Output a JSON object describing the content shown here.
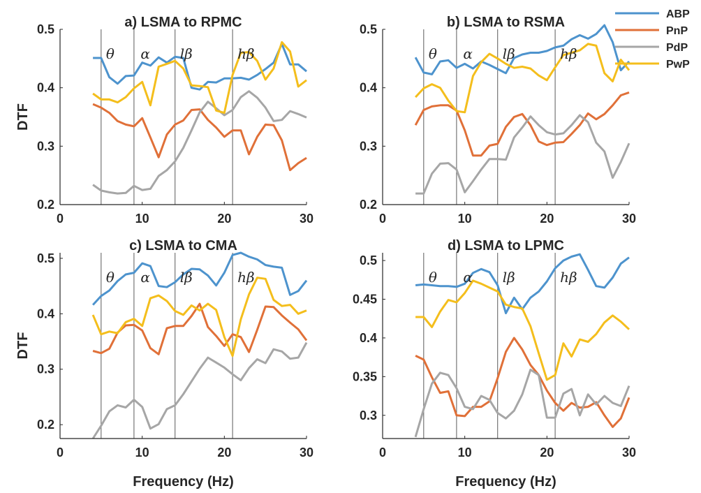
{
  "chart_data": [
    {
      "type": "line",
      "title": "a) LSMA to RPMC",
      "xlabel": "",
      "ylabel": "DTF",
      "xlim": [
        0,
        30
      ],
      "ylim": [
        0.2,
        0.5
      ],
      "xticks": [
        0,
        10,
        20,
        30
      ],
      "yticks": [
        0.2,
        0.3,
        0.4,
        0.5
      ],
      "ytick_labels": [
        "0.2",
        "0.3",
        "0.4",
        "0.5"
      ],
      "band_lines": [
        5,
        9,
        14,
        21
      ],
      "band_labels": [
        {
          "text": "θ",
          "x": 5.6
        },
        {
          "text": "α",
          "x": 9.8
        },
        {
          "text": "lβ",
          "x": 14.6
        },
        {
          "text": "hβ",
          "x": 21.6
        }
      ],
      "x": [
        4,
        5,
        6,
        7,
        8,
        9,
        10,
        11,
        12,
        13,
        14,
        15,
        16,
        17,
        18,
        19,
        20,
        21,
        22,
        23,
        24,
        25,
        26,
        27,
        28,
        29,
        30
      ],
      "series": [
        {
          "name": "ABP",
          "values": [
            0.451,
            0.451,
            0.418,
            0.407,
            0.42,
            0.421,
            0.443,
            0.438,
            0.452,
            0.443,
            0.453,
            0.451,
            0.4,
            0.397,
            0.41,
            0.409,
            0.416,
            0.416,
            0.417,
            0.414,
            0.422,
            0.432,
            0.443,
            0.475,
            0.44,
            0.44,
            0.428
          ]
        },
        {
          "name": "PnP",
          "values": [
            0.372,
            0.366,
            0.357,
            0.343,
            0.337,
            0.334,
            0.348,
            0.315,
            0.281,
            0.32,
            0.337,
            0.344,
            0.362,
            0.363,
            0.345,
            0.332,
            0.316,
            0.327,
            0.327,
            0.286,
            0.316,
            0.337,
            0.336,
            0.31,
            0.259,
            0.271,
            0.28
          ]
        },
        {
          "name": "PdP",
          "values": [
            0.234,
            0.224,
            0.221,
            0.219,
            0.22,
            0.232,
            0.225,
            0.227,
            0.249,
            0.259,
            0.274,
            0.297,
            0.327,
            0.358,
            0.376,
            0.365,
            0.353,
            0.362,
            0.384,
            0.394,
            0.383,
            0.366,
            0.343,
            0.345,
            0.36,
            0.355,
            0.349
          ]
        },
        {
          "name": "PwP",
          "values": [
            0.39,
            0.38,
            0.38,
            0.375,
            0.384,
            0.399,
            0.41,
            0.37,
            0.436,
            0.441,
            0.446,
            0.433,
            0.404,
            0.403,
            0.401,
            0.361,
            0.357,
            0.422,
            0.46,
            0.461,
            0.446,
            0.414,
            0.433,
            0.478,
            0.462,
            0.402,
            0.413
          ]
        }
      ]
    },
    {
      "type": "line",
      "title": "b) LSMA to RSMA",
      "xlabel": "",
      "ylabel": "",
      "xlim": [
        0,
        30
      ],
      "ylim": [
        0.2,
        0.5
      ],
      "xticks": [
        0,
        10,
        20,
        30
      ],
      "yticks": [
        0.2,
        0.3,
        0.4,
        0.5
      ],
      "ytick_labels": [
        "0.2",
        "0.3",
        "0.4",
        "0.5"
      ],
      "band_lines": [
        5,
        9,
        14,
        21
      ],
      "band_labels": [
        {
          "text": "θ",
          "x": 5.6
        },
        {
          "text": "α",
          "x": 9.8
        },
        {
          "text": "lβ",
          "x": 14.6
        },
        {
          "text": "hβ",
          "x": 21.6
        }
      ],
      "x": [
        4,
        5,
        6,
        7,
        8,
        9,
        10,
        11,
        12,
        13,
        14,
        15,
        16,
        17,
        18,
        19,
        20,
        21,
        22,
        23,
        24,
        25,
        26,
        27,
        28,
        29,
        30
      ],
      "series": [
        {
          "name": "ABP",
          "values": [
            0.452,
            0.426,
            0.423,
            0.445,
            0.447,
            0.434,
            0.441,
            0.433,
            0.445,
            0.439,
            0.432,
            0.425,
            0.451,
            0.457,
            0.46,
            0.46,
            0.463,
            0.469,
            0.472,
            0.483,
            0.49,
            0.484,
            0.492,
            0.507,
            0.478,
            0.43,
            0.445
          ]
        },
        {
          "name": "PnP",
          "values": [
            0.336,
            0.362,
            0.368,
            0.37,
            0.37,
            0.361,
            0.327,
            0.284,
            0.284,
            0.301,
            0.304,
            0.333,
            0.35,
            0.355,
            0.336,
            0.308,
            0.302,
            0.306,
            0.307,
            0.321,
            0.336,
            0.356,
            0.346,
            0.355,
            0.37,
            0.387,
            0.392
          ]
        },
        {
          "name": "PdP",
          "values": [
            0.219,
            0.219,
            0.253,
            0.27,
            0.271,
            0.26,
            0.221,
            0.24,
            0.26,
            0.278,
            0.278,
            0.277,
            0.315,
            0.332,
            0.351,
            0.336,
            0.324,
            0.32,
            0.322,
            0.336,
            0.353,
            0.341,
            0.306,
            0.291,
            0.246,
            0.273,
            0.305
          ]
        },
        {
          "name": "PwP",
          "values": [
            0.384,
            0.399,
            0.406,
            0.4,
            0.378,
            0.36,
            0.358,
            0.42,
            0.444,
            0.458,
            0.45,
            0.441,
            0.434,
            0.436,
            0.433,
            0.421,
            0.413,
            0.435,
            0.456,
            0.46,
            0.464,
            0.475,
            0.472,
            0.425,
            0.411,
            0.448,
            0.43
          ]
        }
      ]
    },
    {
      "type": "line",
      "title": "c) LSMA to CMA",
      "xlabel": "Frequency (Hz)",
      "ylabel": "DTF",
      "xlim": [
        0,
        30
      ],
      "ylim": [
        0.175,
        0.51
      ],
      "xticks": [
        0,
        10,
        20,
        30
      ],
      "yticks": [
        0.2,
        0.3,
        0.4,
        0.5
      ],
      "ytick_labels": [
        "0.2",
        "0.3",
        "0.4",
        "0.5"
      ],
      "band_lines": [
        5,
        9,
        14,
        21
      ],
      "band_labels": [
        {
          "text": "θ",
          "x": 5.6
        },
        {
          "text": "α",
          "x": 9.8
        },
        {
          "text": "lβ",
          "x": 14.6
        },
        {
          "text": "hβ",
          "x": 21.6
        }
      ],
      "x": [
        4,
        5,
        6,
        7,
        8,
        9,
        10,
        11,
        12,
        13,
        14,
        15,
        16,
        17,
        18,
        19,
        20,
        21,
        22,
        23,
        24,
        25,
        26,
        27,
        28,
        29,
        30
      ],
      "series": [
        {
          "name": "ABP",
          "values": [
            0.416,
            0.432,
            0.442,
            0.459,
            0.471,
            0.474,
            0.491,
            0.486,
            0.45,
            0.448,
            0.457,
            0.471,
            0.481,
            0.48,
            0.469,
            0.451,
            0.474,
            0.506,
            0.51,
            0.503,
            0.498,
            0.488,
            0.485,
            0.483,
            0.434,
            0.441,
            0.46
          ]
        },
        {
          "name": "PnP",
          "values": [
            0.333,
            0.329,
            0.337,
            0.366,
            0.379,
            0.38,
            0.37,
            0.338,
            0.327,
            0.374,
            0.378,
            0.378,
            0.396,
            0.418,
            0.376,
            0.36,
            0.342,
            0.363,
            0.358,
            0.331,
            0.371,
            0.413,
            0.412,
            0.397,
            0.384,
            0.372,
            0.352
          ]
        },
        {
          "name": "PdP",
          "values": [
            0.175,
            0.198,
            0.224,
            0.235,
            0.231,
            0.245,
            0.232,
            0.193,
            0.201,
            0.228,
            0.235,
            0.255,
            0.278,
            0.301,
            0.321,
            0.312,
            0.303,
            0.291,
            0.28,
            0.302,
            0.318,
            0.311,
            0.336,
            0.332,
            0.319,
            0.321,
            0.348
          ]
        },
        {
          "name": "PwP",
          "values": [
            0.398,
            0.363,
            0.368,
            0.365,
            0.385,
            0.391,
            0.378,
            0.428,
            0.433,
            0.423,
            0.405,
            0.398,
            0.415,
            0.406,
            0.418,
            0.407,
            0.358,
            0.324,
            0.39,
            0.435,
            0.465,
            0.463,
            0.425,
            0.414,
            0.416,
            0.4,
            0.406
          ]
        }
      ]
    },
    {
      "type": "line",
      "title": "d) LSMA to LPMC",
      "xlabel": "Frequency (Hz)",
      "ylabel": "",
      "xlim": [
        0,
        30
      ],
      "ylim": [
        0.27,
        0.51
      ],
      "xticks": [
        0,
        10,
        20,
        30
      ],
      "yticks": [
        0.3,
        0.35,
        0.4,
        0.45,
        0.5
      ],
      "ytick_labels": [
        "0.3",
        "0.35",
        "0.4",
        "0.45",
        "0.5"
      ],
      "band_lines": [
        5,
        9,
        14,
        21
      ],
      "band_labels": [
        {
          "text": "θ",
          "x": 5.6
        },
        {
          "text": "α",
          "x": 9.8
        },
        {
          "text": "lβ",
          "x": 14.6
        },
        {
          "text": "hβ",
          "x": 21.6
        }
      ],
      "x": [
        4,
        5,
        6,
        7,
        8,
        9,
        10,
        11,
        12,
        13,
        14,
        15,
        16,
        17,
        18,
        19,
        20,
        21,
        22,
        23,
        24,
        25,
        26,
        27,
        28,
        29,
        30
      ],
      "series": [
        {
          "name": "ABP",
          "values": [
            0.468,
            0.469,
            0.468,
            0.467,
            0.467,
            0.466,
            0.47,
            0.484,
            0.489,
            0.485,
            0.468,
            0.432,
            0.452,
            0.437,
            0.452,
            0.46,
            0.473,
            0.49,
            0.5,
            0.505,
            0.508,
            0.488,
            0.467,
            0.465,
            0.478,
            0.496,
            0.504
          ]
        },
        {
          "name": "PnP",
          "values": [
            0.377,
            0.372,
            0.349,
            0.329,
            0.331,
            0.3,
            0.299,
            0.311,
            0.311,
            0.318,
            0.348,
            0.382,
            0.4,
            0.385,
            0.365,
            0.352,
            0.332,
            0.316,
            0.306,
            0.316,
            0.31,
            0.311,
            0.317,
            0.3,
            0.285,
            0.296,
            0.323
          ]
        },
        {
          "name": "PdP",
          "values": [
            0.272,
            0.308,
            0.341,
            0.355,
            0.352,
            0.335,
            0.311,
            0.308,
            0.325,
            0.32,
            0.303,
            0.296,
            0.306,
            0.327,
            0.359,
            0.352,
            0.297,
            0.297,
            0.328,
            0.334,
            0.3,
            0.327,
            0.314,
            0.325,
            0.316,
            0.312,
            0.338
          ]
        },
        {
          "name": "PwP",
          "values": [
            0.427,
            0.427,
            0.414,
            0.434,
            0.449,
            0.446,
            0.458,
            0.474,
            0.47,
            0.465,
            0.46,
            0.443,
            0.44,
            0.438,
            0.415,
            0.38,
            0.346,
            0.352,
            0.393,
            0.376,
            0.398,
            0.395,
            0.405,
            0.42,
            0.429,
            0.421,
            0.411
          ]
        }
      ]
    }
  ],
  "legend": [
    {
      "label": "ABP",
      "color": "#4d93cd"
    },
    {
      "label": "PnP",
      "color": "#e07038"
    },
    {
      "label": "PdP",
      "color": "#a6a6a6"
    },
    {
      "label": "PwP",
      "color": "#f4be1c"
    }
  ]
}
